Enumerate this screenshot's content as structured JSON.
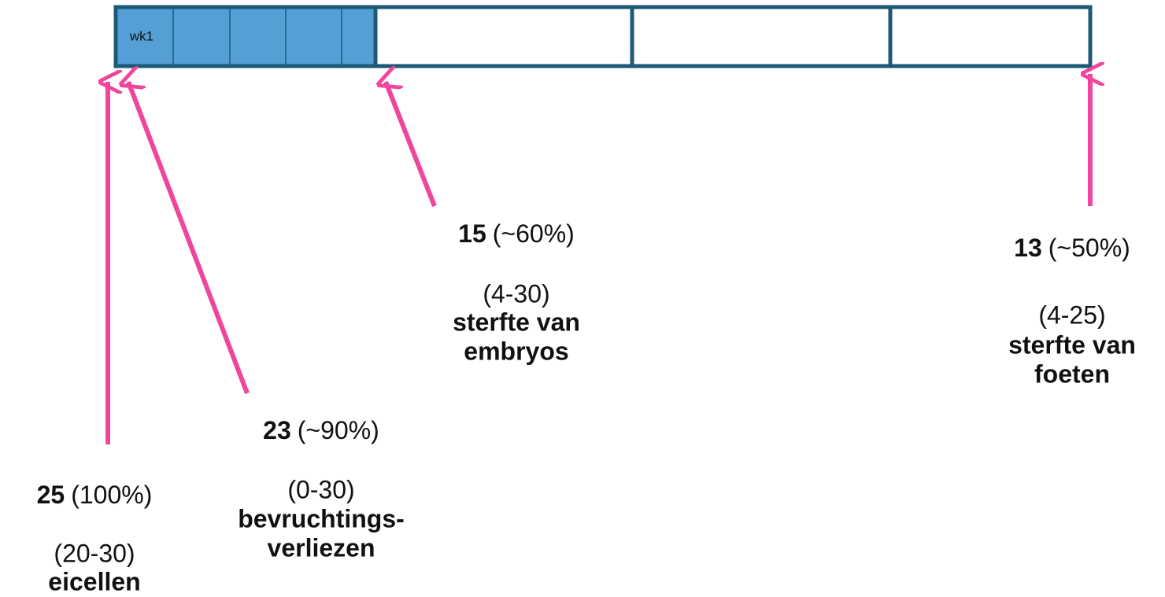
{
  "timeline": {
    "first_cell": "wk1"
  },
  "labels": [
    {
      "count": "25",
      "percent": "(100%)",
      "range": "(20-30)",
      "name": [
        "eicellen"
      ]
    },
    {
      "count": "23",
      "percent": "(~90%)",
      "range": "(0-30)",
      "name": [
        "bevruchtings-",
        "verliezen"
      ]
    },
    {
      "count": "15",
      "percent": "(~60%)",
      "range": "(4-30)",
      "name": [
        "sterfte van",
        "embryos"
      ]
    },
    {
      "count": "13",
      "percent": "(~50%)",
      "range": "(4-25)",
      "name": [
        "sterfte van",
        "foeten"
      ]
    }
  ]
}
